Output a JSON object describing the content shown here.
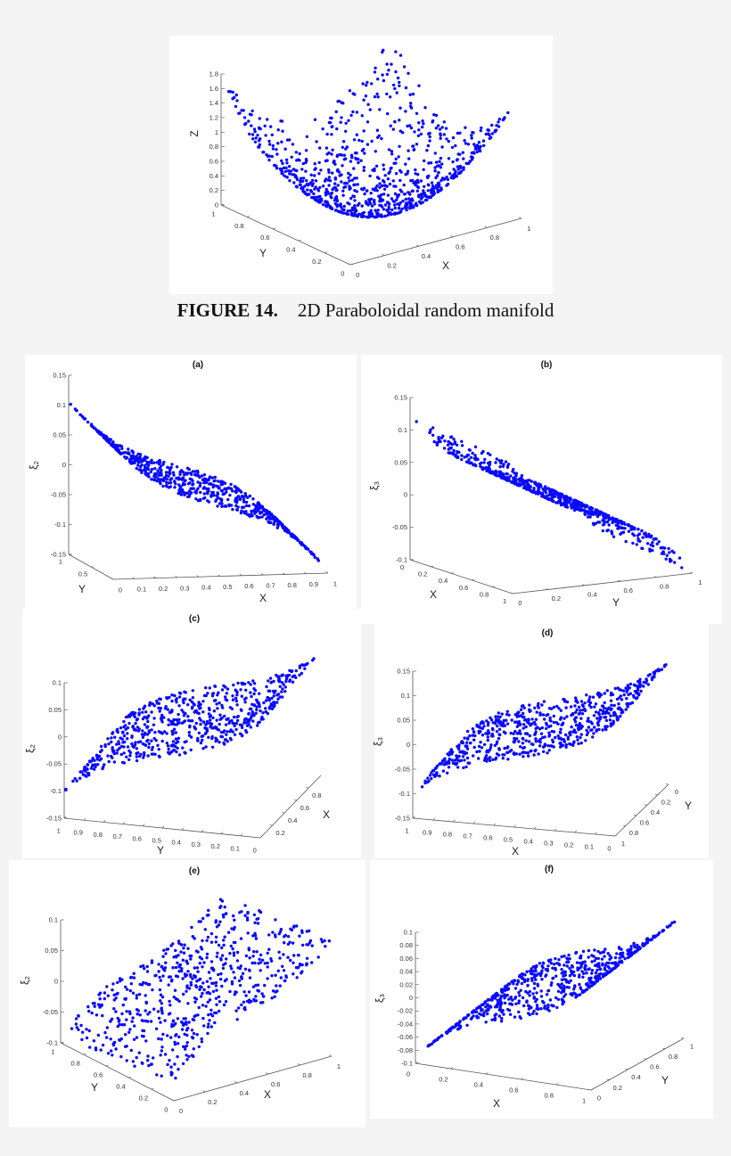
{
  "caption": {
    "label": "FIGURE 14.",
    "text": "2D Paraboloidal random manifold"
  },
  "colors": {
    "points": "#0a0aff",
    "axes": "#555555",
    "panel_bg": "#ffffff",
    "page_bg": "#f4f4f4"
  },
  "chart_data": [
    {
      "id": "top",
      "type": "scatter",
      "title": "",
      "xlabel": "X",
      "ylabel": "Y",
      "zlabel": "Z",
      "xlim": [
        0,
        1
      ],
      "ylim": [
        0,
        1
      ],
      "zlim": [
        0,
        1.8
      ],
      "xticks": [
        "0",
        "0.2",
        "0.4",
        "0.6",
        "0.8",
        "1"
      ],
      "yticks": [
        "0",
        "0.2",
        "0.4",
        "0.6",
        "0.8",
        "1"
      ],
      "zticks": [
        "0",
        "0.2",
        "0.4",
        "0.6",
        "0.8",
        "1",
        "1.2",
        "1.4",
        "1.6",
        "1.8"
      ]
    },
    {
      "id": "a",
      "type": "scatter",
      "title": "(a)",
      "xlabel": "X",
      "ylabel": "Y",
      "zlabel": "ξ₂",
      "xlim": [
        0,
        1
      ],
      "ylim": [
        0,
        1
      ],
      "zlim": [
        -0.15,
        0.15
      ],
      "xticks": [
        "0",
        "0.1",
        "0.2",
        "0.3",
        "0.4",
        "0.5",
        "0.6",
        "0.7",
        "0.8",
        "0.9",
        "1"
      ],
      "yticks": [
        "0.5",
        "1"
      ],
      "zticks": [
        "-0.15",
        "-0.1",
        "-0.05",
        "0",
        "0.05",
        "0.1",
        "0.15"
      ]
    },
    {
      "id": "b",
      "type": "scatter",
      "title": "(b)",
      "xlabel": "X",
      "ylabel": "Y",
      "zlabel": "ξ₃",
      "xlim": [
        0,
        1
      ],
      "ylim": [
        0,
        1
      ],
      "zlim": [
        -0.1,
        0.15
      ],
      "xticks": [
        "0",
        "0.2",
        "0.4",
        "0.6",
        "0.8",
        "1"
      ],
      "yticks": [
        "0",
        "0.2",
        "0.4",
        "0.6",
        "0.8",
        "1"
      ],
      "zticks": [
        "-0.1",
        "-0.05",
        "0",
        "0.05",
        "0.1",
        "0.15"
      ]
    },
    {
      "id": "c",
      "type": "scatter",
      "title": "(c)",
      "xlabel": "X",
      "ylabel": "Y",
      "zlabel": "ξ₂",
      "xlim": [
        0,
        1
      ],
      "ylim": [
        0,
        1
      ],
      "zlim": [
        -0.15,
        0.1
      ],
      "xticks": [
        "0.2",
        "0.4",
        "0.6",
        "0.8"
      ],
      "yticks": [
        "0",
        "0.1",
        "0.2",
        "0.3",
        "0.4",
        "0.5",
        "0.6",
        "0.7",
        "0.8",
        "0.9",
        "1"
      ],
      "zticks": [
        "-0.15",
        "-0.1",
        "-0.05",
        "0",
        "0.05",
        "0.1"
      ]
    },
    {
      "id": "d",
      "type": "scatter",
      "title": "(d)",
      "xlabel": "X",
      "ylabel": "Y",
      "zlabel": "ξ₃",
      "xlim": [
        0,
        1
      ],
      "ylim": [
        0,
        1
      ],
      "zlim": [
        -0.15,
        0.15
      ],
      "xticks": [
        "0",
        "0.1",
        "0.2",
        "0.3",
        "0.4",
        "0.5",
        "0.6",
        "0.7",
        "0.8",
        "0.9",
        "1"
      ],
      "yticks": [
        "0",
        "0.2",
        "0.4",
        "0.6",
        "0.8",
        "1"
      ],
      "zticks": [
        "-0.15",
        "-0.1",
        "-0.05",
        "0",
        "0.05",
        "0.1",
        "0.15"
      ]
    },
    {
      "id": "e",
      "type": "scatter",
      "title": "(e)",
      "xlabel": "X",
      "ylabel": "Y",
      "zlabel": "ξ₂",
      "xlim": [
        0,
        1
      ],
      "ylim": [
        0,
        1
      ],
      "zlim": [
        -0.1,
        0.1
      ],
      "xticks": [
        "0",
        "0.2",
        "0.4",
        "0.6",
        "0.8",
        "1"
      ],
      "yticks": [
        "0",
        "0.2",
        "0.4",
        "0.6",
        "0.8",
        "1"
      ],
      "zticks": [
        "-0.1",
        "-0.05",
        "0",
        "0.05",
        "0.1"
      ]
    },
    {
      "id": "f",
      "type": "scatter",
      "title": "(f)",
      "xlabel": "X",
      "ylabel": "Y",
      "zlabel": "ξ₃",
      "xlim": [
        0,
        1
      ],
      "ylim": [
        0,
        1
      ],
      "zlim": [
        -0.1,
        0.1
      ],
      "xticks": [
        "0",
        "0.2",
        "0.4",
        "0.6",
        "0.8",
        "1"
      ],
      "yticks": [
        "0",
        "0.2",
        "0.4",
        "0.6",
        "0.8",
        "1"
      ],
      "zticks": [
        "-0.1",
        "-0.08",
        "-0.06",
        "-0.04",
        "-0.02",
        "0",
        "0.02",
        "0.04",
        "0.06",
        "0.08",
        "0.1"
      ]
    }
  ]
}
